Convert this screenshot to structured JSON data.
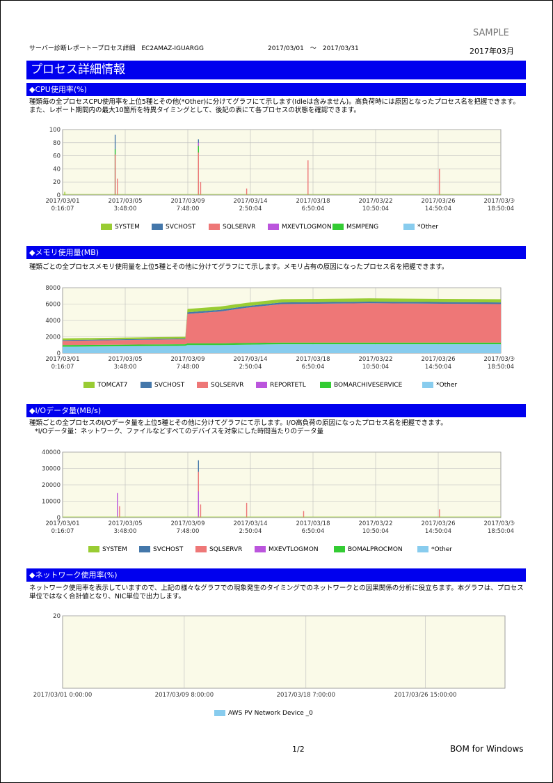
{
  "header": {
    "sample": "SAMPLE",
    "report_title": "サーバー診断レポートープロセス詳細　EC2AMAZ-IGUARGG",
    "period": "2017/03/01　～　2017/03/31",
    "month": "2017年03月"
  },
  "title": "プロセス詳細情報",
  "sections": {
    "cpu": {
      "heading": "◆CPU使用率(%)",
      "description": "種類毎の全プロセスCPU使用率を上位5種とその他(*Other)に分けてグラフにて示します(Idleは含みません)。高負荷時には原因となったプロセス名を把握できます。また、レポート期間内の最大10箇所を特異タイミングとして、後記の表にて各プロセスの状態を確認できます。"
    },
    "memory": {
      "heading": "◆メモリ使用量(MB)",
      "description": "種類ごとの全プロセスメモリ使用量を上位5種とその他に分けてグラフにて示します。メモリ占有の原因になったプロセス名を把握できます。"
    },
    "io": {
      "heading": "◆I/Oデータ量(MB/s)",
      "description": "種類ごとの全プロセスのI/Oデータ量を上位5種とその他に分けてグラフにて示します。I/O高負荷の原因になったプロセス名を把握できます。",
      "note": "*I/Oデータ量：ネットワーク、ファイルなどすべてのデバイスを対象にした時間当たりのデータ量"
    },
    "network": {
      "heading": "◆ネットワーク使用率(%)",
      "description": "ネットワーク使用率を表示していますので、上記の様々なグラフでの現象発生のタイミングでのネットワークとの因果関係の分析に役立ちます。本グラフは、プロセス単位ではなく合計値となり、NIC単位で出力します。"
    }
  },
  "chart_data": [
    {
      "id": "cpu",
      "type": "area",
      "ylim": [
        0,
        100
      ],
      "yticks": [
        "0",
        "20",
        "40",
        "60",
        "80",
        "100"
      ],
      "xticks": [
        [
          "2017/03/01",
          "0:16:07"
        ],
        [
          "2017/03/05",
          "3:48:00"
        ],
        [
          "2017/03/09",
          "7:48:00"
        ],
        [
          "2017/03/14",
          "2:50:04"
        ],
        [
          "2017/03/18",
          "6:50:04"
        ],
        [
          "2017/03/22",
          "10:50:04"
        ],
        [
          "2017/03/26",
          "14:50:04"
        ],
        [
          "2017/03/30",
          "18:50:04"
        ]
      ],
      "series": [
        {
          "name": "SYSTEM",
          "color": "#99cc33"
        },
        {
          "name": "SVCHOST",
          "color": "#4477aa"
        },
        {
          "name": "SQLSERVR",
          "color": "#ee7777"
        },
        {
          "name": "MXEVTLOGMON",
          "color": "#bb55dd"
        },
        {
          "name": "MSMPENG",
          "color": "#33cc33"
        },
        {
          "name": "*Other",
          "color": "#88ccee"
        }
      ],
      "spikes": [
        {
          "x": 0.12,
          "values": {
            "SYSTEM": 0,
            "SVCHOST": 92,
            "SQLSERVR": 62,
            "MSMPENG": 70
          }
        },
        {
          "x": 0.125,
          "values": {
            "SQLSERVR": 25
          }
        },
        {
          "x": 0.005,
          "values": {
            "SYSTEM": 5
          }
        },
        {
          "x": 0.31,
          "values": {
            "SVCHOST": 85,
            "SQLSERVR": 65,
            "MXEVTLOGMON": 80,
            "MSMPENG": 75
          }
        },
        {
          "x": 0.315,
          "values": {
            "SQLSERVR": 20
          }
        },
        {
          "x": 0.42,
          "values": {
            "SQLSERVR": 10
          }
        },
        {
          "x": 0.56,
          "values": {
            "SQLSERVR": 53
          }
        },
        {
          "x": 0.86,
          "values": {
            "SQLSERVR": 40
          }
        }
      ]
    },
    {
      "id": "memory",
      "type": "area",
      "ylim": [
        0,
        8000
      ],
      "yticks": [
        "0",
        "2000",
        "4000",
        "6000",
        "8000"
      ],
      "xticks": [
        [
          "2017/03/01",
          "0:16:07"
        ],
        [
          "2017/03/05",
          "3:48:00"
        ],
        [
          "2017/03/09",
          "7:48:00"
        ],
        [
          "2017/03/14",
          "2:50:04"
        ],
        [
          "2017/03/18",
          "6:50:04"
        ],
        [
          "2017/03/22",
          "10:50:04"
        ],
        [
          "2017/03/26",
          "14:50:04"
        ],
        [
          "2017/03/30",
          "18:50:04"
        ]
      ],
      "series": [
        {
          "name": "TOMCAT7",
          "color": "#99cc33"
        },
        {
          "name": "SVCHOST",
          "color": "#4477aa"
        },
        {
          "name": "SQLSERVR",
          "color": "#ee7777"
        },
        {
          "name": "REPORTETL",
          "color": "#bb55dd"
        },
        {
          "name": "BOMARCHIVESERVICE",
          "color": "#33cc33"
        },
        {
          "name": "*Other",
          "color": "#88ccee"
        }
      ],
      "profile": [
        {
          "x": 0.0,
          "other": 800,
          "bom": 200,
          "sql": 500,
          "svc": 100,
          "tom": 200
        },
        {
          "x": 0.28,
          "other": 900,
          "bom": 200,
          "sql": 600,
          "svc": 100,
          "tom": 200
        },
        {
          "x": 0.285,
          "other": 1000,
          "bom": 200,
          "sql": 3600,
          "svc": 200,
          "tom": 400
        },
        {
          "x": 0.36,
          "other": 1000,
          "bom": 200,
          "sql": 3900,
          "svc": 200,
          "tom": 400
        },
        {
          "x": 0.42,
          "other": 1050,
          "bom": 200,
          "sql": 4300,
          "svc": 200,
          "tom": 400
        },
        {
          "x": 0.5,
          "other": 1100,
          "bom": 200,
          "sql": 4700,
          "svc": 200,
          "tom": 400
        },
        {
          "x": 0.7,
          "other": 1100,
          "bom": 200,
          "sql": 4800,
          "svc": 200,
          "tom": 400
        },
        {
          "x": 1.0,
          "other": 1100,
          "bom": 200,
          "sql": 4700,
          "svc": 200,
          "tom": 400
        }
      ]
    },
    {
      "id": "io",
      "type": "area",
      "ylim": [
        0,
        40000
      ],
      "yticks": [
        "0",
        "10000",
        "20000",
        "30000",
        "40000"
      ],
      "xticks": [
        [
          "2017/03/01",
          "0:16:07"
        ],
        [
          "2017/03/05",
          "3:48:00"
        ],
        [
          "2017/03/09",
          "7:48:00"
        ],
        [
          "2017/03/14",
          "2:50:04"
        ],
        [
          "2017/03/18",
          "6:50:04"
        ],
        [
          "2017/03/22",
          "10:50:04"
        ],
        [
          "2017/03/26",
          "14:50:04"
        ],
        [
          "2017/03/30",
          "18:50:04"
        ]
      ],
      "series": [
        {
          "name": "SYSTEM",
          "color": "#99cc33"
        },
        {
          "name": "SVCHOST",
          "color": "#4477aa"
        },
        {
          "name": "SQLSERVR",
          "color": "#ee7777"
        },
        {
          "name": "MXEVTLOGMON",
          "color": "#bb55dd"
        },
        {
          "name": "BOMALPROCMON",
          "color": "#33cc33"
        },
        {
          "name": "*Other",
          "color": "#88ccee"
        }
      ],
      "spikes": [
        {
          "x": 0.125,
          "values": {
            "MXEVTLOGMON": 15000
          }
        },
        {
          "x": 0.13,
          "values": {
            "SQLSERVR": 7000
          }
        },
        {
          "x": 0.31,
          "values": {
            "SVCHOST": 35000,
            "SQLSERVR": 28000,
            "MXEVTLOGMON": 16000
          }
        },
        {
          "x": 0.315,
          "values": {
            "SQLSERVR": 8000
          }
        },
        {
          "x": 0.42,
          "values": {
            "SQLSERVR": 9000
          }
        },
        {
          "x": 0.55,
          "values": {
            "SQLSERVR": 4000
          }
        },
        {
          "x": 0.86,
          "values": {
            "SQLSERVR": 5000
          }
        }
      ]
    },
    {
      "id": "network",
      "type": "line",
      "ylim": [
        0,
        20
      ],
      "yticks": [
        "20"
      ],
      "xticks": [
        "2017/03/01 0:00:00",
        "2017/03/09 8:00:00",
        "2017/03/18 7:00:00",
        "2017/03/26 15:00:00"
      ],
      "series": [
        {
          "name": "AWS PV Network Device _0",
          "color": "#88ccee"
        }
      ]
    }
  ],
  "footer": {
    "page": "1/2",
    "brand": "BOM for Windows"
  }
}
